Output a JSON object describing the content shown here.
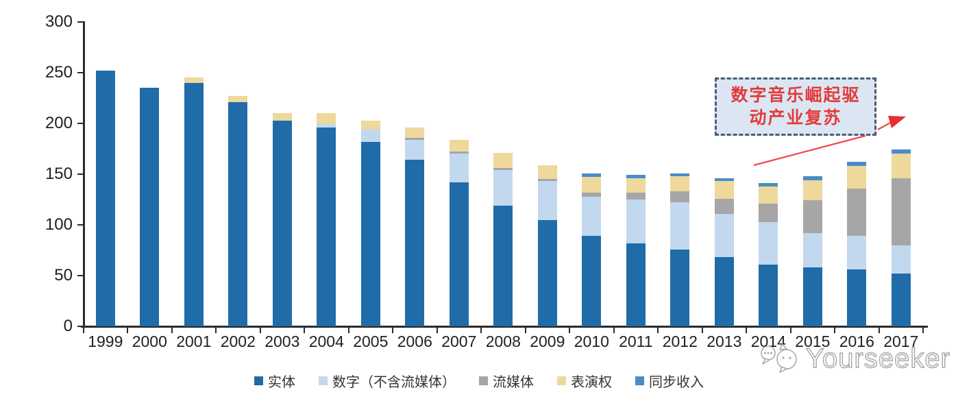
{
  "chart_data": {
    "type": "bar",
    "stacked": true,
    "grid": false,
    "legend_position": "bottom",
    "ylim": [
      0,
      300
    ],
    "yticks": [
      0,
      50,
      100,
      150,
      200,
      250,
      300
    ],
    "categories": [
      "1999",
      "2000",
      "2001",
      "2002",
      "2003",
      "2004",
      "2005",
      "2006",
      "2007",
      "2008",
      "2009",
      "2010",
      "2011",
      "2012",
      "2013",
      "2014",
      "2015",
      "2016",
      "2017"
    ],
    "series": [
      {
        "name": "实体",
        "color": "#1f6ca9",
        "values": [
          252,
          235,
          240,
          221,
          203,
          196,
          182,
          164,
          142,
          119,
          105,
          89,
          82,
          76,
          68,
          61,
          58,
          56,
          52
        ]
      },
      {
        "name": "数字（不含流媒体）",
        "color": "#c2d8ee",
        "values": [
          0,
          0,
          0,
          0,
          0,
          3,
          12,
          20,
          28,
          35,
          38,
          39,
          43,
          46,
          43,
          42,
          34,
          33,
          28
        ]
      },
      {
        "name": "流媒体",
        "color": "#a6a6a6",
        "values": [
          0,
          0,
          0,
          0,
          0,
          0,
          0,
          2,
          2,
          2,
          2,
          4,
          7,
          11,
          15,
          18,
          32,
          47,
          66
        ]
      },
      {
        "name": "表演权",
        "color": "#eed89c",
        "values": [
          0,
          0,
          5,
          6,
          7,
          11,
          9,
          10,
          12,
          15,
          14,
          15,
          14,
          15,
          17,
          17,
          20,
          22,
          24
        ]
      },
      {
        "name": "同步收入",
        "color": "#4a8cc7",
        "values": [
          0,
          0,
          0,
          0,
          0,
          0,
          0,
          0,
          0,
          0,
          0,
          4,
          3,
          3,
          3,
          3,
          4,
          4,
          4
        ]
      }
    ]
  },
  "annotation": {
    "line1": "数字音乐崛起驱",
    "line2": "动产业复苏",
    "text_color": "#e23b3b",
    "box_fill": "#dce6f2",
    "box_border": "#4a5a77",
    "arrow_color": "#f04747"
  },
  "watermark": {
    "text": "Yourseeker"
  }
}
